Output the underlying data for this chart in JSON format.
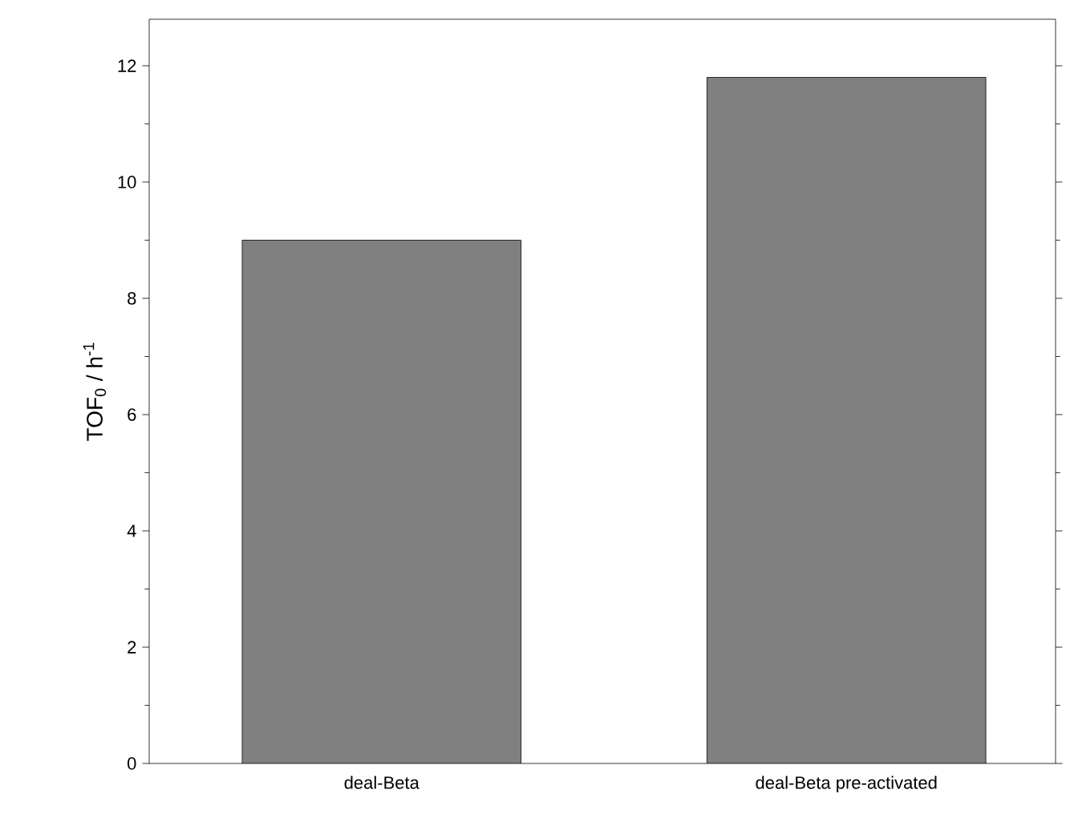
{
  "chart_data": {
    "type": "bar",
    "ylabel": "TOF$_{0}$ / h$^{-1}$",
    "categories": [
      "deal-Beta",
      "deal-Beta pre-activated"
    ],
    "values": [
      9.0,
      11.8
    ],
    "color": "#808080",
    "ylim": [
      0,
      12.8
    ],
    "yticks": [
      0,
      2,
      4,
      6,
      8,
      10,
      12
    ],
    "grid": false
  }
}
